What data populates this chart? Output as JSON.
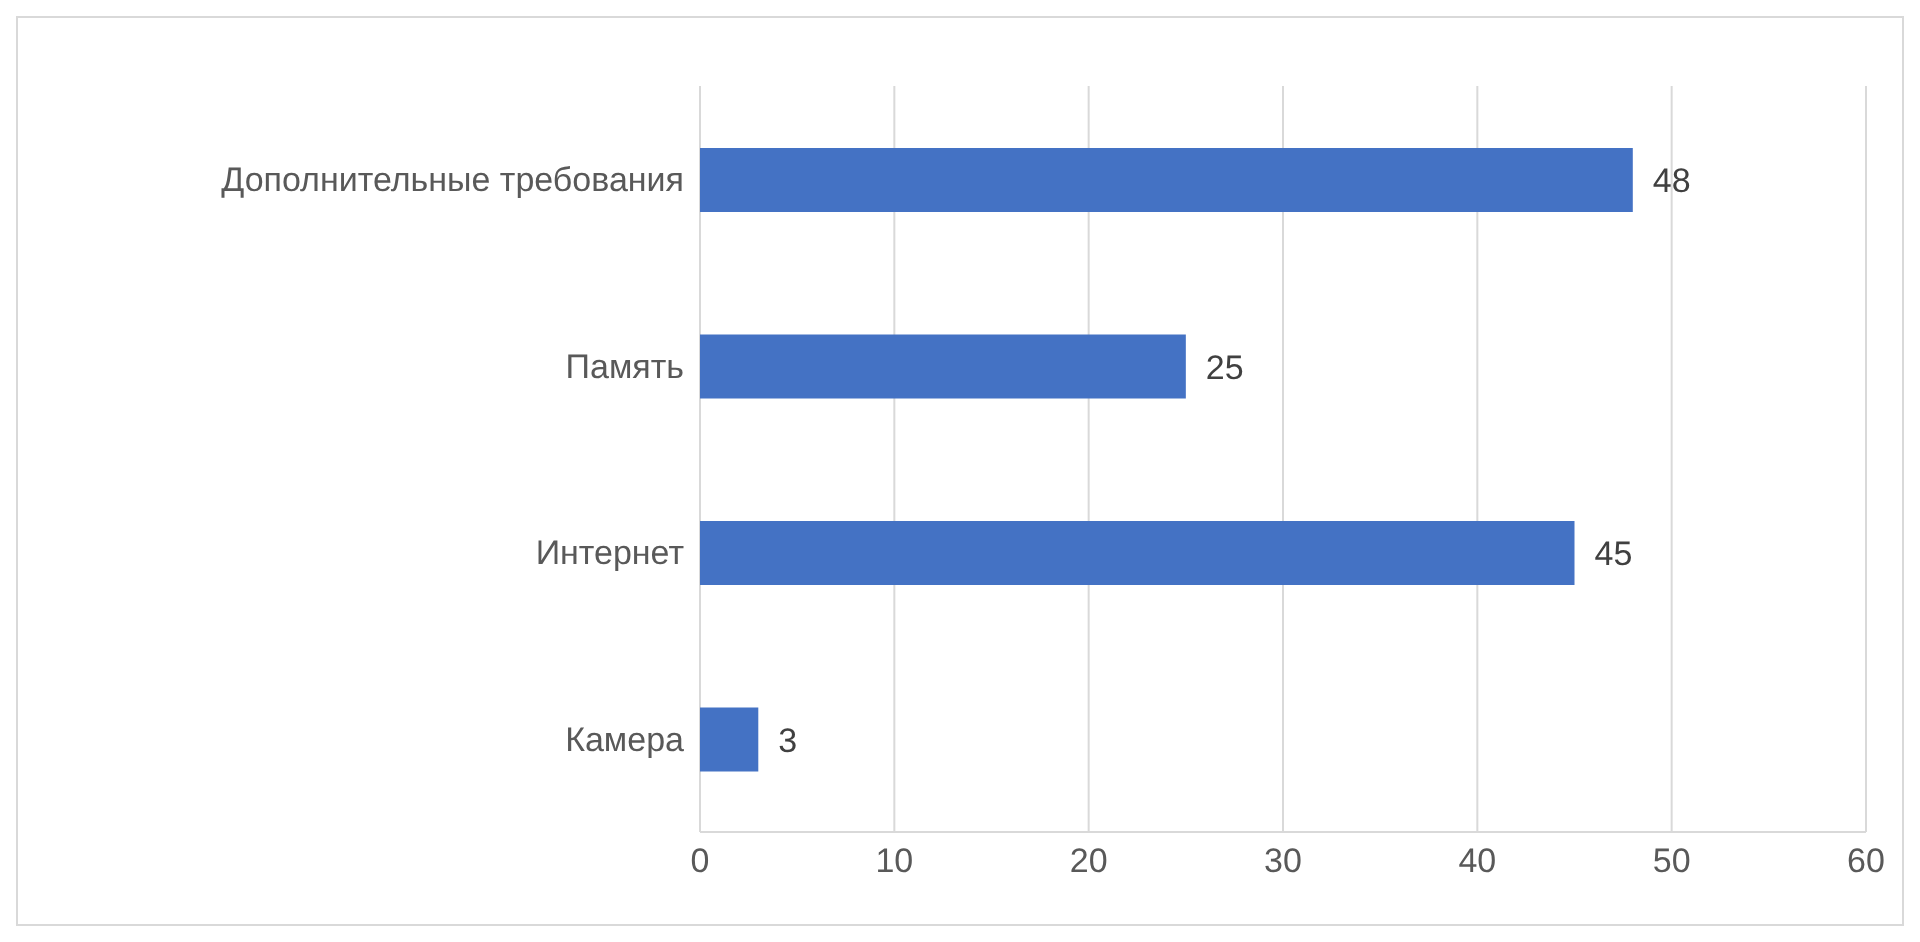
{
  "chart_data": {
    "type": "bar",
    "orientation": "horizontal",
    "categories": [
      "Дополнительные требования",
      "Память",
      "Интернет",
      "Камера"
    ],
    "values": [
      48,
      25,
      45,
      3
    ],
    "color": "#4472c4",
    "xlim": [
      0,
      60
    ],
    "xticks": [
      0,
      10,
      20,
      30,
      40,
      50,
      60
    ],
    "grid": "x",
    "data_labels": true,
    "legend": false
  }
}
